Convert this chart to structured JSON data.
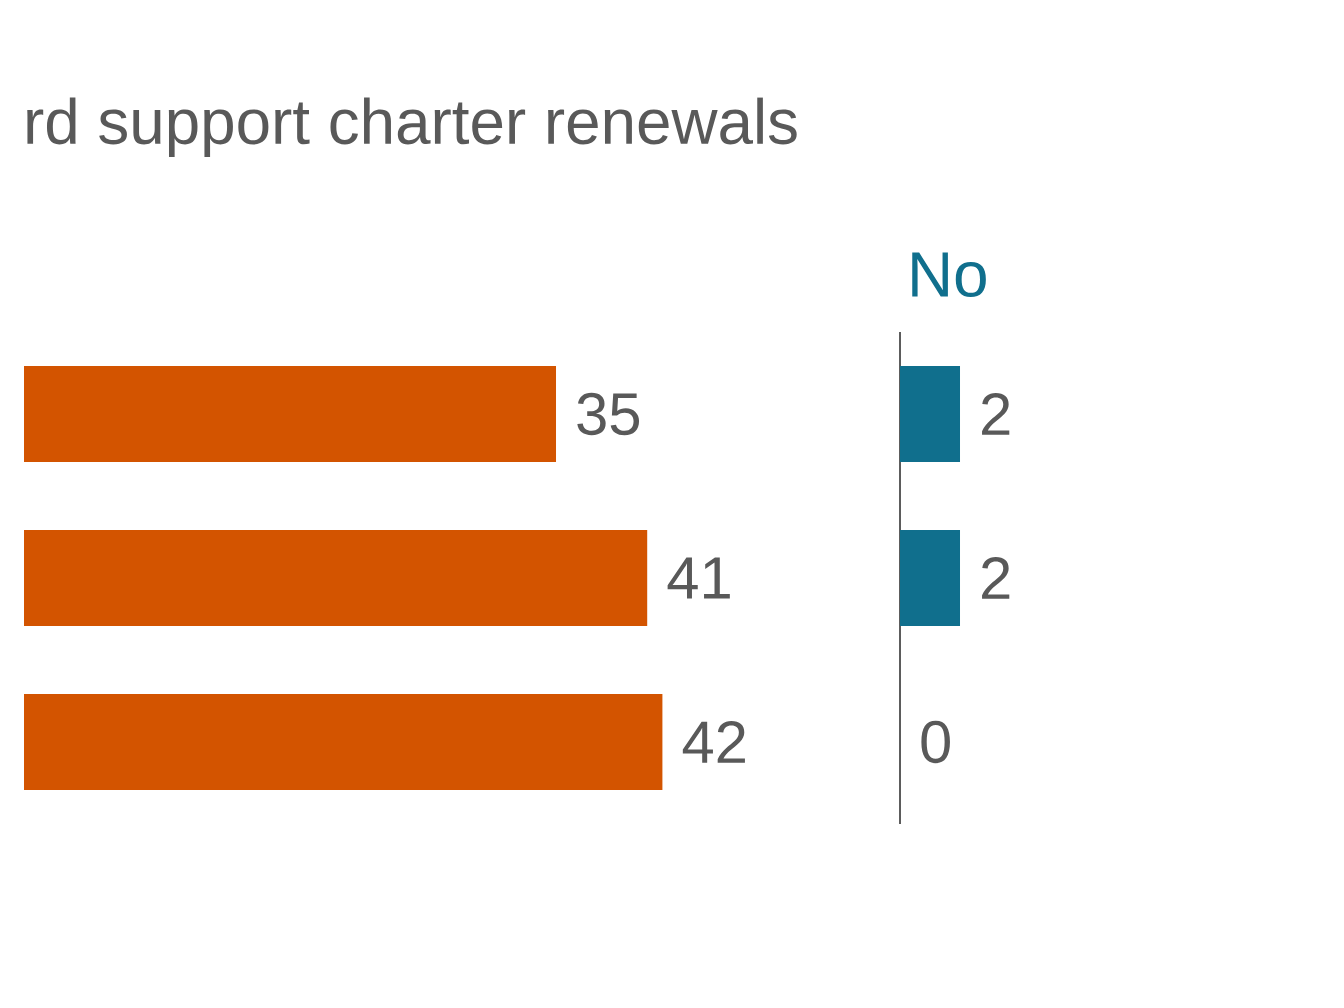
{
  "chart_data": [
    {
      "type": "bar",
      "orientation": "horizontal",
      "title": "rd support charter renewals",
      "categories": [
        null,
        null,
        null
      ],
      "series": [
        {
          "color": "#d35400",
          "values": [
            35,
            41,
            42
          ]
        }
      ],
      "data_labels": true
    },
    {
      "type": "bar",
      "orientation": "horizontal",
      "title": "No",
      "categories": [
        null,
        null,
        null
      ],
      "series": [
        {
          "color": "#106f8d",
          "values": [
            2,
            2,
            0
          ]
        }
      ],
      "data_labels": true
    }
  ]
}
